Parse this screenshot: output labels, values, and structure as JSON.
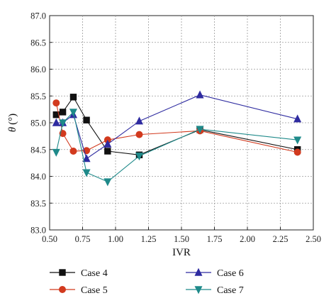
{
  "chart_data": {
    "type": "line",
    "xlabel": "IVR",
    "ylabel_symbol": "θ",
    "ylabel_unit": "(°)",
    "xlim": [
      0.5,
      2.5
    ],
    "ylim": [
      83.0,
      87.0
    ],
    "xticks": [
      "0.50",
      "0.75",
      "1.00",
      "1.25",
      "1.50",
      "1.75",
      "2.00",
      "2.25",
      "2.50"
    ],
    "yticks": [
      "83.0",
      "83.5",
      "84.0",
      "84.5",
      "85.0",
      "85.5",
      "86.0",
      "86.5",
      "87.0"
    ],
    "grid": true,
    "legend_position": "bottom",
    "series": [
      {
        "name": "Case 4",
        "color": "#111111",
        "marker": "square",
        "x": [
          0.55,
          0.6,
          0.68,
          0.78,
          0.94,
          1.18,
          1.64,
          2.38
        ],
        "y": [
          85.15,
          85.2,
          85.48,
          85.05,
          84.47,
          84.4,
          84.87,
          84.5
        ]
      },
      {
        "name": "Case 5",
        "color": "#d23a1e",
        "marker": "circle",
        "x": [
          0.55,
          0.6,
          0.68,
          0.78,
          0.94,
          1.18,
          1.64,
          2.38
        ],
        "y": [
          85.37,
          84.8,
          84.47,
          84.48,
          84.68,
          84.78,
          84.85,
          84.45
        ]
      },
      {
        "name": "Case 6",
        "color": "#2e2ba0",
        "marker": "triangle-up",
        "x": [
          0.55,
          0.6,
          0.68,
          0.78,
          0.94,
          1.18,
          1.64,
          2.38
        ],
        "y": [
          85.0,
          85.0,
          85.15,
          84.33,
          84.6,
          85.03,
          85.52,
          85.07
        ]
      },
      {
        "name": "Case 7",
        "color": "#1f8a8a",
        "marker": "triangle-down",
        "x": [
          0.55,
          0.6,
          0.68,
          0.78,
          0.94,
          1.18,
          1.64,
          2.38
        ],
        "y": [
          84.45,
          85.0,
          85.2,
          84.07,
          83.9,
          84.38,
          84.88,
          84.68
        ]
      }
    ]
  }
}
